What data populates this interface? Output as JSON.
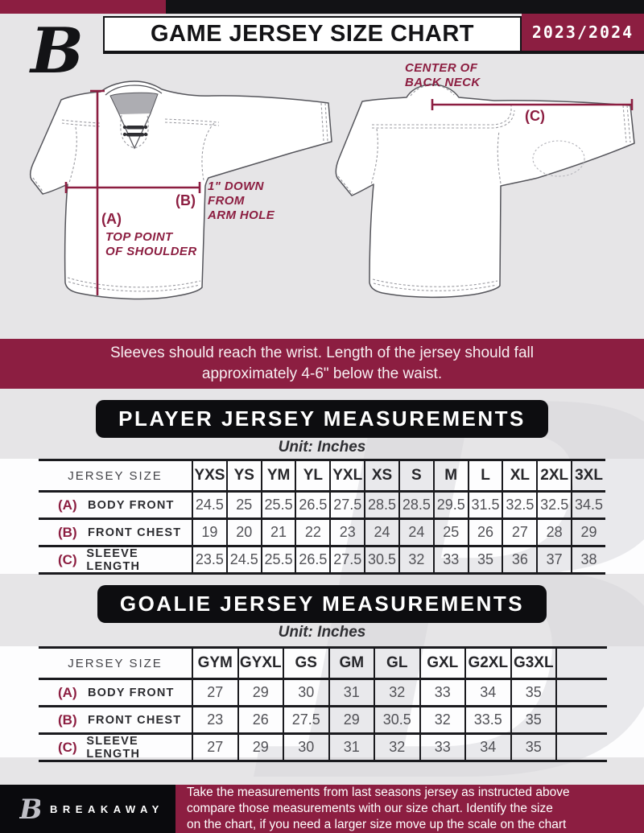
{
  "colors": {
    "maroon": "#8C1E41",
    "black": "#0d0d10",
    "background": "#e6e5e7"
  },
  "header": {
    "title": "GAME JERSEY SIZE CHART",
    "season": "2023/2024"
  },
  "diagram": {
    "a_key": "(A)",
    "a_note": "TOP POINT\nOF SHOULDER",
    "b_key": "(B)",
    "b_note": "1\" DOWN\nFROM\nARM HOLE",
    "c_key": "(C)",
    "c_note": "CENTER OF\nBACK NECK"
  },
  "instruction_banner": "Sleeves should reach the wrist. Length of the jersey should fall\napproximately 4-6\" below the waist.",
  "player_section": {
    "title": "PLAYER JERSEY MEASUREMENTS",
    "unit_label": "Unit: Inches",
    "table": {
      "corner_label": "JERSEY SIZE",
      "sizes": [
        "YXS",
        "YS",
        "YM",
        "YL",
        "YXL",
        "XS",
        "S",
        "M",
        "L",
        "XL",
        "2XL",
        "3XL"
      ],
      "rows": [
        {
          "key": "(A)",
          "label": "BODY FRONT",
          "values": [
            "24.5",
            "25",
            "25.5",
            "26.5",
            "27.5",
            "28.5",
            "28.5",
            "29.5",
            "31.5",
            "32.5",
            "32.5",
            "34.5"
          ]
        },
        {
          "key": "(B)",
          "label": "FRONT CHEST",
          "values": [
            "19",
            "20",
            "21",
            "22",
            "23",
            "24",
            "24",
            "25",
            "26",
            "27",
            "28",
            "29"
          ]
        },
        {
          "key": "(C)",
          "label": "SLEEVE LENGTH",
          "values": [
            "23.5",
            "24.5",
            "25.5",
            "26.5",
            "27.5",
            "30.5",
            "32",
            "33",
            "35",
            "36",
            "37",
            "38"
          ]
        }
      ]
    }
  },
  "goalie_section": {
    "title": "GOALIE JERSEY MEASUREMENTS",
    "unit_label": "Unit: Inches",
    "table": {
      "corner_label": "JERSEY SIZE",
      "sizes": [
        "GYM",
        "GYXL",
        "GS",
        "GM",
        "GL",
        "GXL",
        "G2XL",
        "G3XL",
        ""
      ],
      "rows": [
        {
          "key": "(A)",
          "label": "BODY FRONT",
          "values": [
            "27",
            "29",
            "30",
            "31",
            "32",
            "33",
            "34",
            "35",
            ""
          ]
        },
        {
          "key": "(B)",
          "label": "FRONT CHEST",
          "values": [
            "23",
            "26",
            "27.5",
            "29",
            "30.5",
            "32",
            "33.5",
            "35",
            ""
          ]
        },
        {
          "key": "(C)",
          "label": "SLEEVE LENGTH",
          "values": [
            "27",
            "29",
            "30",
            "31",
            "32",
            "33",
            "34",
            "35",
            ""
          ]
        }
      ]
    }
  },
  "footer": {
    "brand": "BREAKAWAY",
    "note": "Take the measurements from last seasons jersey as instructed above\ncompare those measurements  with our size chart. Identify the size\non the chart, if you need a larger size move up the scale on the chart"
  }
}
